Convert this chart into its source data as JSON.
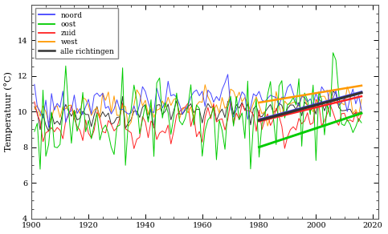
{
  "title": "",
  "ylabel": "Temperatuur (°C)",
  "xlabel": "",
  "x_start": 1901,
  "x_end": 2016,
  "trend_start": 1980,
  "trend_end": 2016,
  "ylim": [
    4,
    16
  ],
  "yticks": [
    4,
    6,
    8,
    10,
    12,
    14
  ],
  "xticks": [
    1900,
    1920,
    1940,
    1960,
    1980,
    2000,
    2020
  ],
  "xlim": [
    1900,
    2022
  ],
  "line_colors": {
    "noord": "#4444ff",
    "oost": "#00cc00",
    "zuid": "#ff2222",
    "west": "#ff9900",
    "alle": "#333333"
  },
  "trend_colors": {
    "noord": "#4444ff",
    "oost": "#00cc00",
    "zuid": "#ff2222",
    "west": "#ff9900",
    "alle": "#333333"
  },
  "legend_labels": [
    "noord",
    "oost",
    "zuid",
    "west",
    "alle richtingen"
  ],
  "legend_colors": [
    "#4444ff",
    "#00cc00",
    "#ff2222",
    "#ff9900",
    "#333333"
  ],
  "background_color": "#ffffff",
  "seed": 42,
  "trend_noord": [
    9.55,
    11.1
  ],
  "trend_oost": [
    8.0,
    9.9
  ],
  "trend_zuid": [
    9.45,
    10.85
  ],
  "trend_west": [
    10.5,
    11.45
  ],
  "trend_alle": [
    9.5,
    11.05
  ]
}
